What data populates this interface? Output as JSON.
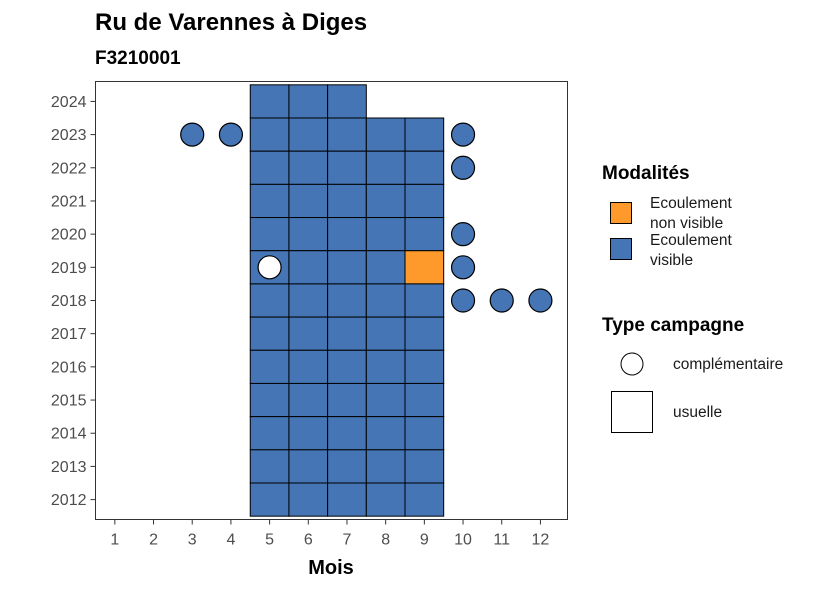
{
  "chart_data": {
    "type": "heatmap",
    "title": "Ru de Varennes à Diges",
    "subtitle": "F3210001",
    "xlabel": "Mois",
    "ylabel": "",
    "x_ticks": [
      "1",
      "2",
      "3",
      "4",
      "5",
      "6",
      "7",
      "8",
      "9",
      "10",
      "11",
      "12"
    ],
    "y_ticks": [
      "2012",
      "2013",
      "2014",
      "2015",
      "2016",
      "2017",
      "2018",
      "2019",
      "2020",
      "2021",
      "2022",
      "2023",
      "2024"
    ],
    "xlim": [
      0.5,
      12.7
    ],
    "ylim": [
      2011.4,
      2024.6
    ],
    "colors": {
      "visible": "#4575b4",
      "non_visible": "#fd9a2b"
    },
    "usuelle": [
      {
        "year": 2024,
        "months": [
          5,
          6,
          7
        ],
        "modalite": "visible"
      },
      {
        "year": 2023,
        "months": [
          5,
          6,
          7,
          8,
          9
        ],
        "modalite": "visible"
      },
      {
        "year": 2022,
        "months": [
          5,
          6,
          7,
          8,
          9
        ],
        "modalite": "visible"
      },
      {
        "year": 2021,
        "months": [
          5,
          6,
          7,
          8,
          9
        ],
        "modalite": "visible"
      },
      {
        "year": 2020,
        "months": [
          5,
          6,
          7,
          8,
          9
        ],
        "modalite": "visible"
      },
      {
        "year": 2019,
        "months": [
          5,
          6,
          7,
          8
        ],
        "modalite": "visible"
      },
      {
        "year": 2019,
        "months": [
          9
        ],
        "modalite": "non_visible"
      },
      {
        "year": 2018,
        "months": [
          5,
          6,
          7,
          8,
          9
        ],
        "modalite": "visible"
      },
      {
        "year": 2017,
        "months": [
          5,
          6,
          7,
          8,
          9
        ],
        "modalite": "visible"
      },
      {
        "year": 2016,
        "months": [
          5,
          6,
          7,
          8,
          9
        ],
        "modalite": "visible"
      },
      {
        "year": 2015,
        "months": [
          5,
          6,
          7,
          8,
          9
        ],
        "modalite": "visible"
      },
      {
        "year": 2014,
        "months": [
          5,
          6,
          7,
          8,
          9
        ],
        "modalite": "visible"
      },
      {
        "year": 2013,
        "months": [
          5,
          6,
          7,
          8,
          9
        ],
        "modalite": "visible"
      },
      {
        "year": 2012,
        "months": [
          5,
          6,
          7,
          8,
          9
        ],
        "modalite": "visible"
      }
    ],
    "complementaire": [
      {
        "year": 2023,
        "month": 3,
        "modalite": "visible"
      },
      {
        "year": 2023,
        "month": 4,
        "modalite": "visible"
      },
      {
        "year": 2023,
        "month": 10,
        "modalite": "visible"
      },
      {
        "year": 2022,
        "month": 10,
        "modalite": "visible"
      },
      {
        "year": 2020,
        "month": 10,
        "modalite": "visible"
      },
      {
        "year": 2019,
        "month": 5,
        "modalite": "none"
      },
      {
        "year": 2019,
        "month": 10,
        "modalite": "visible"
      },
      {
        "year": 2018,
        "month": 10,
        "modalite": "visible"
      },
      {
        "year": 2018,
        "month": 11,
        "modalite": "visible"
      },
      {
        "year": 2018,
        "month": 12,
        "modalite": "visible"
      }
    ],
    "legend": {
      "modalites_title": "Modalités",
      "modalites": [
        {
          "key": "non_visible",
          "line1": "Ecoulement",
          "line2": "non visible"
        },
        {
          "key": "visible",
          "line1": "Ecoulement",
          "line2": "visible"
        }
      ],
      "type_title": "Type campagne",
      "types": [
        {
          "key": "complementaire",
          "label": "complémentaire"
        },
        {
          "key": "usuelle",
          "label": "usuelle"
        }
      ],
      "position": "right"
    }
  }
}
